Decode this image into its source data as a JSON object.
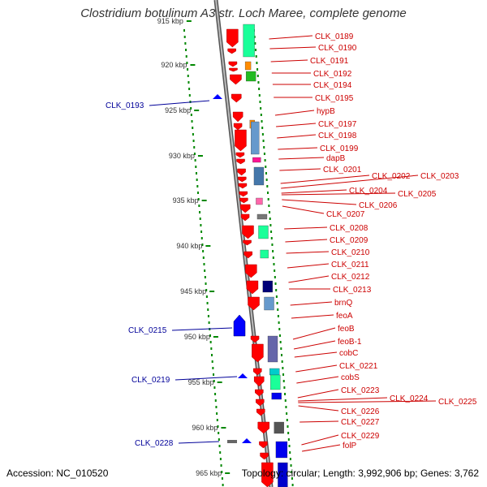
{
  "title": "Clostridium botulinum A3 str. Loch Maree, complete genome",
  "accession": "Accession: NC_010520",
  "topology": "Topology: circular; Length: 3,992,906 bp; Genes: 3,762",
  "colors": {
    "forward_arrow": "#ff0000",
    "reverse_arrow": "#0000ff",
    "right_label": "#cc0000",
    "left_label": "#000099",
    "backbone": "#888888",
    "ruler_dot": "#008800"
  },
  "ruler_labels": [
    {
      "kbp": 915,
      "text": "915 kbp"
    },
    {
      "kbp": 920,
      "text": "920 kbp"
    },
    {
      "kbp": 925,
      "text": "925 kbp"
    },
    {
      "kbp": 930,
      "text": "930 kbp"
    },
    {
      "kbp": 935,
      "text": "935 kbp"
    },
    {
      "kbp": 940,
      "text": "940 kbp"
    },
    {
      "kbp": 945,
      "text": "945 kbp"
    },
    {
      "kbp": 950,
      "text": "950 kbp"
    },
    {
      "kbp": 955,
      "text": "955 kbp"
    },
    {
      "kbp": 960,
      "text": "960 kbp"
    },
    {
      "kbp": 965,
      "text": "965 kbp"
    }
  ],
  "right_genes": [
    "CLK_0189",
    "CLK_0190",
    "CLK_0191",
    "CLK_0192",
    "CLK_0194",
    "CLK_0195",
    "hypB",
    "CLK_0197",
    "CLK_0198",
    "CLK_0199",
    "dapB",
    "CLK_0201",
    "CLK_0202",
    "CLK_0203",
    "CLK_0204",
    "CLK_0205",
    "CLK_0206",
    "CLK_0207",
    "CLK_0208",
    "CLK_0209",
    "CLK_0210",
    "CLK_0211",
    "CLK_0212",
    "CLK_0213",
    "brnQ",
    "feoA",
    "feoB",
    "feoB-1",
    "cobC",
    "CLK_0221",
    "cobS",
    "CLK_0223",
    "CLK_0224",
    "CLK_0225",
    "CLK_0226",
    "CLK_0227",
    "CLK_0229",
    "folP"
  ],
  "left_genes": [
    "CLK_0193",
    "CLK_0215",
    "CLK_0219",
    "CLK_0228"
  ]
}
